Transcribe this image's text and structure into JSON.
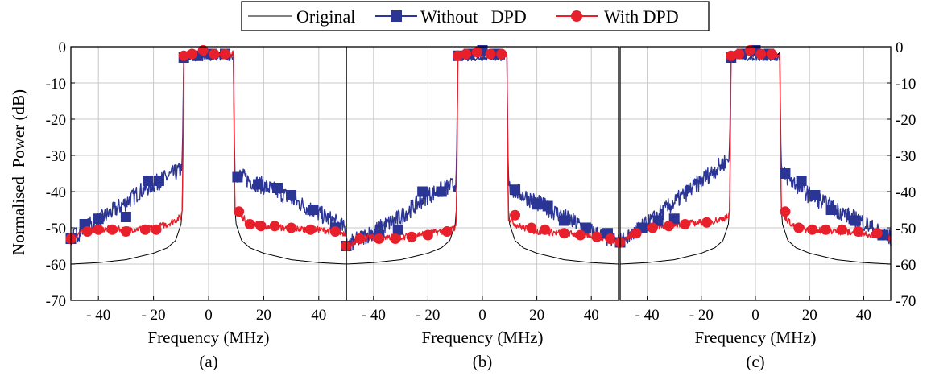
{
  "colors": {
    "original": "#000000",
    "without_dpd": "#2b3595",
    "with_dpd": "#e8202c"
  },
  "legend": {
    "position": "top-center",
    "entries": [
      "Original",
      "Without   DPD",
      "With DPD"
    ]
  },
  "chart_data": [
    {
      "type": "line",
      "subplot_label": "(a)",
      "xlabel": "Frequency (MHz)",
      "ylabel": "Normalised  Power (dB)",
      "xlim": [
        -50,
        50
      ],
      "ylim": [
        -70,
        0
      ],
      "xticks": [
        -40,
        -20,
        0,
        20,
        40
      ],
      "xtick_labels": [
        "- 40",
        "- 20",
        "0",
        "20",
        "40"
      ],
      "yticks": [
        0,
        -10,
        -20,
        -30,
        -40,
        -50,
        -60,
        -70
      ],
      "ytick_labels": [
        "0",
        "-10",
        "-20",
        "-30",
        "-40",
        "-50",
        "-60",
        "-70"
      ],
      "grid": true,
      "series": [
        {
          "name": "Original",
          "x": [
            -50,
            -40,
            -30,
            -20,
            -15,
            -12,
            -10,
            -9.5,
            -9,
            9,
            9.5,
            10,
            12,
            15,
            20,
            30,
            40,
            50
          ],
          "y": [
            -60,
            -59.6,
            -58.8,
            -57,
            -55.5,
            -53.5,
            -49,
            -44,
            -2,
            -2,
            -44,
            -49,
            -53.5,
            -55.5,
            -57,
            -58.8,
            -59.6,
            -60
          ]
        },
        {
          "name": "Without   DPD",
          "x": [
            -50,
            -45,
            -40,
            -35,
            -30,
            -25,
            -20,
            -15,
            -10,
            -9.5,
            -9,
            9,
            9.5,
            10,
            15,
            20,
            25,
            30,
            35,
            40,
            45,
            50
          ],
          "y": [
            -53,
            -50,
            -48,
            -45.5,
            -43,
            -40,
            -38,
            -36,
            -34,
            -30,
            -3,
            -3,
            -34,
            -35,
            -37,
            -38.5,
            -40,
            -42,
            -44,
            -46,
            -48,
            -50.5
          ]
        },
        {
          "name": "With DPD",
          "x": [
            -50,
            -45,
            -40,
            -35,
            -30,
            -20,
            -15,
            -10,
            -9.5,
            -9,
            9,
            9.5,
            10,
            12,
            15,
            20,
            30,
            40,
            45,
            50
          ],
          "y": [
            -53,
            -50.5,
            -50.5,
            -50.3,
            -50.5,
            -50,
            -49,
            -47,
            -45,
            -2,
            -2,
            -45,
            -45.5,
            -47,
            -48.5,
            -49.5,
            -50.2,
            -50.5,
            -51,
            -51.5
          ]
        }
      ],
      "markers": {
        "Without   DPD": [
          [
            -50,
            -53
          ],
          [
            -45,
            -49
          ],
          [
            -40,
            -47.5
          ],
          [
            -30,
            -47
          ],
          [
            -22,
            -37
          ],
          [
            -18,
            -37
          ],
          [
            -9,
            -3
          ],
          [
            -4,
            -2.5
          ],
          [
            1,
            -2
          ],
          [
            6,
            -2
          ],
          [
            10.5,
            -36
          ],
          [
            18,
            -38
          ],
          [
            25,
            -39
          ],
          [
            30,
            -41
          ],
          [
            38,
            -45
          ],
          [
            46,
            -50
          ]
        ],
        "With DPD": [
          [
            -50,
            -53
          ],
          [
            -44,
            -51
          ],
          [
            -40,
            -50.5
          ],
          [
            -35,
            -50.5
          ],
          [
            -30,
            -51
          ],
          [
            -23,
            -50.5
          ],
          [
            -19,
            -50.5
          ],
          [
            -9,
            -2.5
          ],
          [
            -6,
            -2
          ],
          [
            -2,
            -1
          ],
          [
            2,
            -2
          ],
          [
            6,
            -2
          ],
          [
            11,
            -45.5
          ],
          [
            15,
            -49
          ],
          [
            19,
            -49.5
          ],
          [
            24,
            -49.5
          ],
          [
            30,
            -50
          ],
          [
            37,
            -50.5
          ],
          [
            46,
            -51
          ]
        ]
      }
    },
    {
      "type": "line",
      "subplot_label": "(b)",
      "xlabel": "Frequency (MHz)",
      "xlim": [
        -50,
        50
      ],
      "ylim": [
        -70,
        0
      ],
      "xticks": [
        -40,
        -20,
        0,
        20,
        40
      ],
      "xtick_labels": [
        "- 40",
        "- 20",
        "0",
        "20",
        "40"
      ],
      "grid": true,
      "series": [
        {
          "name": "Original",
          "x": [
            -50,
            -40,
            -30,
            -20,
            -15,
            -12,
            -10,
            -9.5,
            -9,
            9,
            9.5,
            10,
            12,
            15,
            20,
            30,
            40,
            50
          ],
          "y": [
            -60,
            -59.6,
            -58.8,
            -57,
            -55.5,
            -53.5,
            -49,
            -44,
            -2,
            -2,
            -44,
            -49,
            -53.5,
            -55.5,
            -57,
            -58.8,
            -59.6,
            -60
          ]
        },
        {
          "name": "Without   DPD",
          "x": [
            -50,
            -45,
            -40,
            -35,
            -30,
            -25,
            -20,
            -15,
            -10,
            -9.5,
            -9,
            9,
            9.5,
            10,
            15,
            20,
            25,
            30,
            35,
            40,
            45,
            50
          ],
          "y": [
            -55,
            -53,
            -51,
            -49,
            -47,
            -44,
            -41,
            -39.5,
            -38,
            -33,
            -3,
            -3,
            -37,
            -39,
            -41,
            -43,
            -45,
            -47,
            -49,
            -51,
            -52.5,
            -54
          ]
        },
        {
          "name": "With DPD",
          "x": [
            -50,
            -45,
            -40,
            -35,
            -30,
            -20,
            -15,
            -10,
            -9.5,
            -9,
            9,
            9.5,
            10,
            12,
            15,
            20,
            30,
            40,
            45,
            50
          ],
          "y": [
            -55,
            -53,
            -52.5,
            -52.5,
            -52.5,
            -51.5,
            -51,
            -50,
            -47,
            -2,
            -2,
            -47,
            -47.5,
            -49,
            -50,
            -51,
            -51.5,
            -52,
            -53,
            -54
          ]
        }
      ],
      "markers": {
        "Without   DPD": [
          [
            -50,
            -55
          ],
          [
            -38,
            -52
          ],
          [
            -31,
            -50.5
          ],
          [
            -22,
            -40
          ],
          [
            -15,
            -40
          ],
          [
            -9,
            -2.5
          ],
          [
            -5,
            -2
          ],
          [
            0,
            -1
          ],
          [
            5,
            -2
          ],
          [
            12,
            -39.5
          ],
          [
            20,
            -43.5
          ],
          [
            24,
            -44
          ],
          [
            30,
            -48
          ],
          [
            38,
            -50
          ],
          [
            46,
            -51.5
          ]
        ],
        "With DPD": [
          [
            -50,
            -55
          ],
          [
            -45,
            -53
          ],
          [
            -38,
            -53
          ],
          [
            -32,
            -53
          ],
          [
            -26,
            -52.5
          ],
          [
            -20,
            -52
          ],
          [
            -13,
            -51
          ],
          [
            -9,
            -2.5
          ],
          [
            -6,
            -2
          ],
          [
            -2,
            -1.5
          ],
          [
            3,
            -2
          ],
          [
            7,
            -2
          ],
          [
            12,
            -46.5
          ],
          [
            18,
            -50
          ],
          [
            23,
            -50.5
          ],
          [
            30,
            -51.5
          ],
          [
            36,
            -52
          ],
          [
            42,
            -52.5
          ],
          [
            47,
            -53
          ]
        ]
      }
    },
    {
      "type": "line",
      "subplot_label": "(c)",
      "xlabel": "Frequency (MHz)",
      "xlim": [
        -50,
        50
      ],
      "ylim": [
        -70,
        0
      ],
      "xticks": [
        -40,
        -20,
        0,
        20,
        40
      ],
      "xtick_labels": [
        "- 40",
        "- 20",
        "0",
        "20",
        "40"
      ],
      "yticks": [
        0,
        -10,
        -20,
        -30,
        -40,
        -50,
        -60,
        -70
      ],
      "ytick_labels": [
        "0",
        "-10",
        "-20",
        "-30",
        "-40",
        "-50",
        "-60",
        "-70"
      ],
      "grid": true,
      "series": [
        {
          "name": "Original",
          "x": [
            -50,
            -40,
            -30,
            -20,
            -15,
            -12,
            -10,
            -9.5,
            -9,
            9,
            9.5,
            10,
            12,
            15,
            20,
            30,
            40,
            50
          ],
          "y": [
            -60,
            -59.6,
            -58.8,
            -57,
            -55.5,
            -53.5,
            -49,
            -44,
            -2,
            -2,
            -44,
            -49,
            -53.5,
            -55.5,
            -57,
            -58.8,
            -59.6,
            -60
          ]
        },
        {
          "name": "Without   DPD",
          "x": [
            -50,
            -45,
            -40,
            -35,
            -30,
            -25,
            -20,
            -15,
            -10,
            -9.5,
            -9,
            9,
            9.5,
            10,
            15,
            20,
            25,
            30,
            35,
            40,
            45,
            50
          ],
          "y": [
            -54,
            -51.5,
            -49,
            -46,
            -43,
            -40,
            -37,
            -34,
            -31,
            -27,
            -3,
            -3,
            -33,
            -35,
            -38,
            -41,
            -43,
            -45,
            -47,
            -48.5,
            -51,
            -53
          ]
        },
        {
          "name": "With DPD",
          "x": [
            -50,
            -45,
            -40,
            -35,
            -30,
            -20,
            -15,
            -10,
            -9.5,
            -9,
            9,
            9.5,
            10,
            12,
            15,
            20,
            30,
            40,
            45,
            50
          ],
          "y": [
            -54,
            -51.5,
            -50,
            -49.5,
            -49,
            -48.5,
            -48,
            -47,
            -45,
            -2,
            -2,
            -45,
            -46,
            -48,
            -50,
            -50.5,
            -51,
            -51.5,
            -52,
            -53
          ]
        }
      ],
      "markers": {
        "Without   DPD": [
          [
            -50,
            -54
          ],
          [
            -42,
            -50
          ],
          [
            -36,
            -48
          ],
          [
            -30,
            -47.5
          ],
          [
            -9,
            -3
          ],
          [
            -5,
            -2
          ],
          [
            0,
            -1
          ],
          [
            5,
            -2
          ],
          [
            11,
            -35
          ],
          [
            17,
            -37
          ],
          [
            22,
            -41
          ],
          [
            28,
            -45
          ],
          [
            37,
            -48
          ],
          [
            47,
            -52
          ]
        ],
        "With DPD": [
          [
            -50,
            -54
          ],
          [
            -44,
            -51.5
          ],
          [
            -38,
            -50
          ],
          [
            -32,
            -49.5
          ],
          [
            -26,
            -49
          ],
          [
            -18,
            -48.5
          ],
          [
            -9,
            -2.5
          ],
          [
            -6,
            -2
          ],
          [
            -2,
            -1
          ],
          [
            2,
            -2
          ],
          [
            6,
            -2
          ],
          [
            11,
            -45.5
          ],
          [
            16,
            -50
          ],
          [
            21,
            -50.5
          ],
          [
            26,
            -50.5
          ],
          [
            32,
            -50.5
          ],
          [
            38,
            -51
          ],
          [
            45,
            -51.5
          ]
        ]
      }
    }
  ]
}
